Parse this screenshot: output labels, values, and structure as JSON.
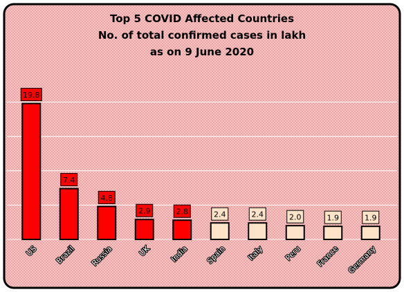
{
  "chart_data": {
    "type": "bar",
    "title": [
      "Top 5 COVID Affected Countries",
      "No. of total confirmed cases in lakh",
      "as on 9 June 2020"
    ],
    "categories": [
      "US",
      "Brazil",
      "Russia",
      "UK",
      "India",
      "Spain",
      "Italy",
      "Peru",
      "France",
      "Germany"
    ],
    "values": [
      19.8,
      7.4,
      4.8,
      2.9,
      2.8,
      2.4,
      2.4,
      2.0,
      1.9,
      1.9
    ],
    "data_labels": [
      "19.8",
      "7.4",
      "4.8",
      "2.9",
      "2.8",
      "2.4",
      "2.4",
      "2.0",
      "1.9",
      "1.9"
    ],
    "highlight_count": 5,
    "ylim": [
      0,
      25
    ],
    "grid": true,
    "legend": "none",
    "xlabel": "",
    "ylabel": "",
    "colors": {
      "highlight": "#ff0000",
      "other": "#fde3c8",
      "background": "#f7c6c6",
      "pattern": "#e88a8a",
      "outline": "#000000",
      "gridline": "#ffffff"
    }
  }
}
